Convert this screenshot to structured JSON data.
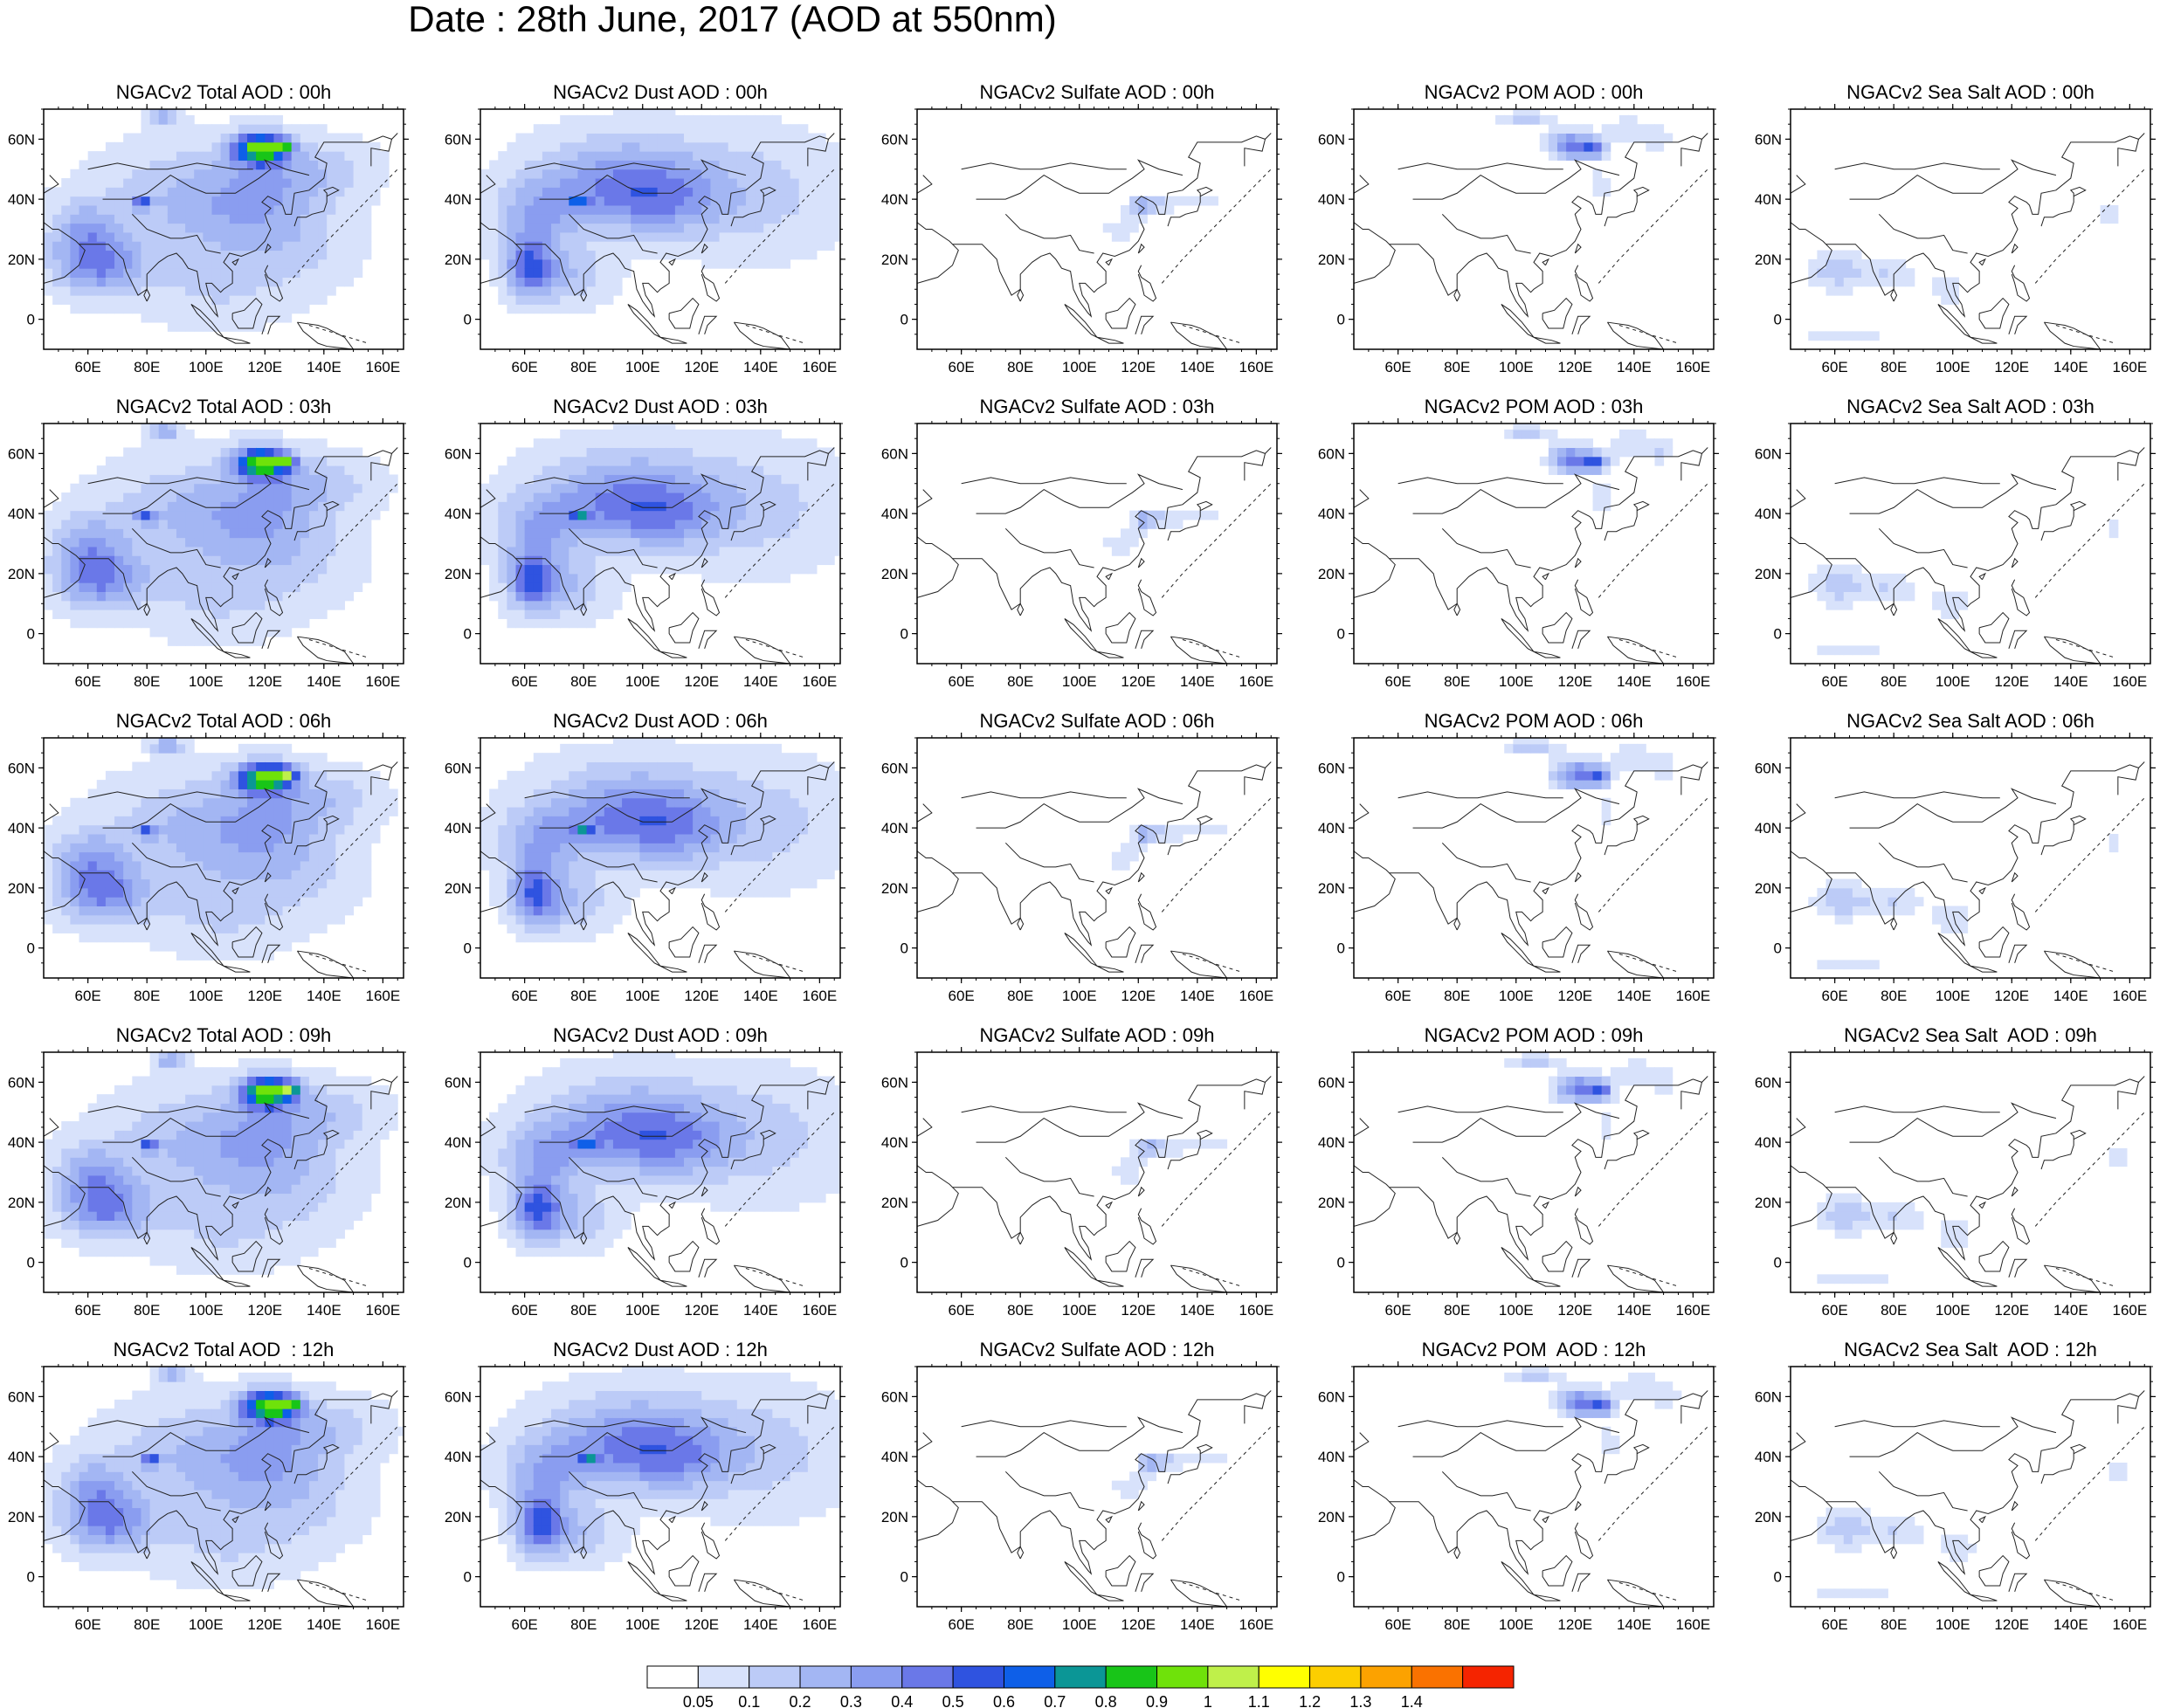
{
  "title": "Date : 28th June, 2017 (AOD at 550nm)",
  "panel_titles": [
    [
      "NGACv2 Total AOD : 00h",
      "NGACv2 Dust AOD : 00h",
      "NGACv2 Sulfate AOD : 00h",
      "NGACv2 POM AOD : 00h",
      "NGACv2 Sea Salt AOD : 00h"
    ],
    [
      "NGACv2 Total AOD : 03h",
      "NGACv2 Dust AOD : 03h",
      "NGACv2 Sulfate AOD : 03h",
      "NGACv2 POM AOD : 03h",
      "NGACv2 Sea Salt AOD : 03h"
    ],
    [
      "NGACv2 Total AOD : 06h",
      "NGACv2 Dust AOD : 06h",
      "NGACv2 Sulfate AOD : 06h",
      "NGACv2 POM AOD : 06h",
      "NGACv2 Sea Salt AOD : 06h"
    ],
    [
      "NGACv2 Total AOD : 09h",
      "NGACv2 Dust AOD : 09h",
      "NGACv2 Sulfate AOD : 09h",
      "NGACv2 POM AOD : 09h",
      "NGACv2 Sea Salt  AOD : 09h"
    ],
    [
      "NGACv2 Total AOD  : 12h",
      "NGACv2 Dust AOD : 12h",
      "NGACv2 Sulfate AOD : 12h",
      "NGACv2 POM  AOD : 12h",
      "NGACv2 Sea Salt  AOD : 12h"
    ]
  ],
  "lat_ticks": [
    {
      "value": 60,
      "label": "60N"
    },
    {
      "value": 40,
      "label": "40N"
    },
    {
      "value": 20,
      "label": "20N"
    },
    {
      "value": 0,
      "label": "0"
    }
  ],
  "lon_ticks": [
    {
      "value": 60,
      "label": "60E"
    },
    {
      "value": 80,
      "label": "80E"
    },
    {
      "value": 100,
      "label": "100E"
    },
    {
      "value": 120,
      "label": "120E"
    },
    {
      "value": 140,
      "label": "140E"
    },
    {
      "value": 160,
      "label": "160E"
    }
  ],
  "map_extent": {
    "lon_min": 45,
    "lon_max": 167,
    "lat_min": -10,
    "lat_max": 70
  },
  "colorbar": {
    "labels": [
      "0.05",
      "0.1",
      "0.2",
      "0.3",
      "0.4",
      "0.5",
      "0.6",
      "0.7",
      "0.8",
      "0.9",
      "1",
      "1.1",
      "1.2",
      "1.3",
      "1.4"
    ],
    "colors": [
      "#ffffff",
      "#d8e2fb",
      "#bccbf7",
      "#a3b6f3",
      "#8a9df0",
      "#6a78e8",
      "#2f53e0",
      "#0e5fe8",
      "#0b9696",
      "#18c518",
      "#6fe20a",
      "#bff04a",
      "#ffff00",
      "#fcce00",
      "#fca200",
      "#fa7200",
      "#f52400"
    ]
  }
}
